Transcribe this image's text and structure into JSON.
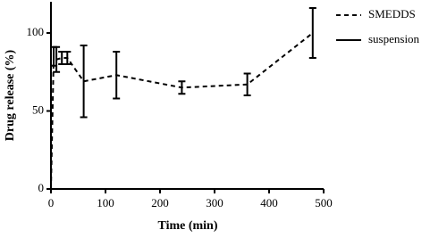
{
  "chart_data": {
    "type": "line",
    "x_label": "Time (min)",
    "y_label": "Drug release (%)",
    "x": [
      0,
      5,
      10,
      20,
      30,
      60,
      120,
      240,
      360,
      480
    ],
    "series": [
      {
        "name": "SMEDDS",
        "color": "#000000",
        "dash": true,
        "values": [
          0,
          85,
          83,
          84,
          84,
          69,
          73,
          65,
          67,
          100
        ],
        "errors": [
          0,
          6,
          8,
          4,
          4,
          23,
          15,
          4,
          7,
          16
        ]
      },
      {
        "name": "suspension",
        "color": "#000000",
        "dash": false,
        "values": [
          null,
          null,
          null,
          null,
          null,
          null,
          null,
          null,
          null,
          null
        ],
        "errors": [
          null,
          null,
          null,
          null,
          null,
          null,
          null,
          null,
          null,
          null
        ]
      }
    ],
    "xlim": [
      0,
      500
    ],
    "xticks": [
      0,
      100,
      200,
      300,
      400,
      500
    ],
    "ylim": [
      0,
      120
    ],
    "yticks": [
      0,
      50,
      100
    ],
    "legend": "right"
  }
}
